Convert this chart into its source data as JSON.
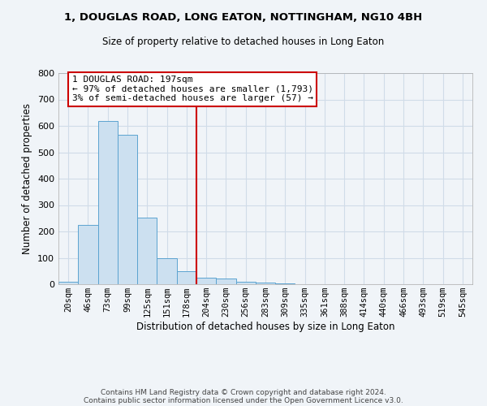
{
  "title1": "1, DOUGLAS ROAD, LONG EATON, NOTTINGHAM, NG10 4BH",
  "title2": "Size of property relative to detached houses in Long Eaton",
  "xlabel": "Distribution of detached houses by size in Long Eaton",
  "ylabel": "Number of detached properties",
  "bar_color": "#cce0f0",
  "bar_edge_color": "#5ba3d0",
  "categories": [
    "20sqm",
    "46sqm",
    "73sqm",
    "99sqm",
    "125sqm",
    "151sqm",
    "178sqm",
    "204sqm",
    "230sqm",
    "256sqm",
    "283sqm",
    "309sqm",
    "335sqm",
    "361sqm",
    "388sqm",
    "414sqm",
    "440sqm",
    "466sqm",
    "493sqm",
    "519sqm",
    "545sqm"
  ],
  "values": [
    10,
    224,
    617,
    565,
    252,
    97,
    48,
    25,
    22,
    10,
    6,
    2,
    0,
    0,
    0,
    0,
    0,
    0,
    0,
    0,
    0
  ],
  "red_line_index": 7,
  "annotation_line1": "1 DOUGLAS ROAD: 197sqm",
  "annotation_line2": "← 97% of detached houses are smaller (1,793)",
  "annotation_line3": "3% of semi-detached houses are larger (57) →",
  "annotation_box_color": "#ffffff",
  "annotation_box_edge_color": "#cc0000",
  "red_line_color": "#cc0000",
  "ylim": [
    0,
    800
  ],
  "yticks": [
    0,
    100,
    200,
    300,
    400,
    500,
    600,
    700,
    800
  ],
  "grid_color": "#d0dce8",
  "footnote1": "Contains HM Land Registry data © Crown copyright and database right 2024.",
  "footnote2": "Contains public sector information licensed under the Open Government Licence v3.0.",
  "bg_color": "#f0f4f8"
}
